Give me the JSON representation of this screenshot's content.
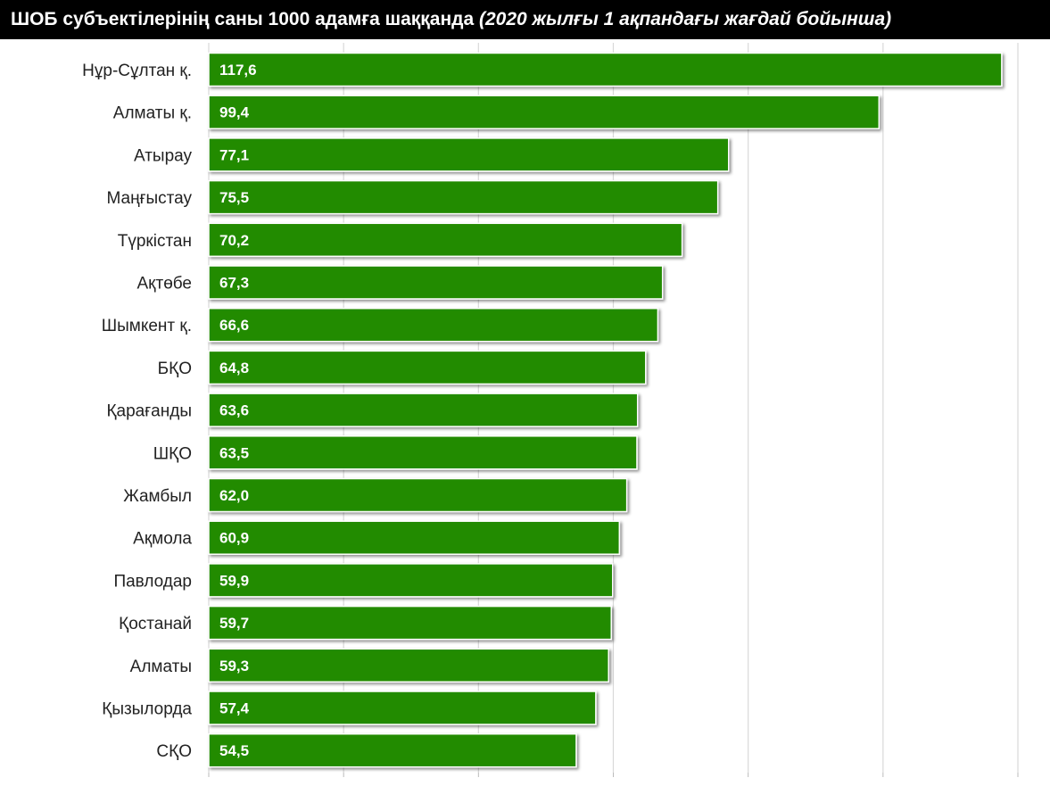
{
  "chart_data": {
    "type": "bar",
    "orientation": "horizontal",
    "title": "ШОБ субъектілерінің саны 1000 адамға шаққанда",
    "subtitle": "(2020 жылғы 1 ақпандағы жағдай бойынша)",
    "xlabel": "",
    "ylabel": "",
    "categories": [
      "Нұр-Сұлтан қ.",
      "Алматы қ.",
      "Атырау",
      "Маңғыстау",
      "Түркістан",
      "Ақтөбе",
      "Шымкент қ.",
      "БҚО",
      "Қарағанды",
      "ШҚО",
      "Жамбыл",
      "Ақмола",
      "Павлодар",
      "Қостанай",
      "Алматы",
      "Қызылорда",
      "СҚО"
    ],
    "values": [
      117.6,
      99.4,
      77.1,
      75.5,
      70.2,
      67.3,
      66.6,
      64.8,
      63.6,
      63.5,
      62.0,
      60.9,
      59.9,
      59.7,
      59.3,
      57.4,
      54.5
    ],
    "value_labels": [
      "117,6",
      "99,4",
      "77,1",
      "75,5",
      "70,2",
      "67,3",
      "66,6",
      "64,8",
      "63,6",
      "63,5",
      "62,0",
      "60,9",
      "59,9",
      "59,7",
      "59,3",
      "57,4",
      "54,5"
    ],
    "xlim": [
      0,
      120
    ],
    "grid": true,
    "legend": "none",
    "bar_color": "#228B00",
    "title_bg_color": "#000000",
    "title_text_color": "#ffffff"
  }
}
